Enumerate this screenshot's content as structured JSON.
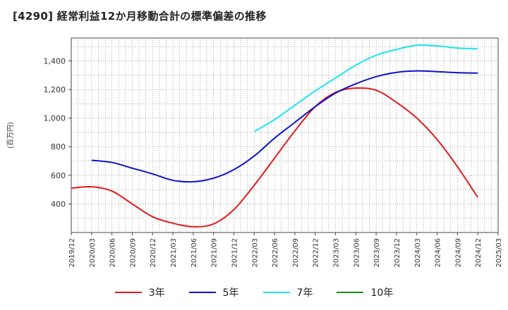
{
  "title": "[4290]  経常利益12か月移動合計の標準偏差の推移",
  "chart_data": {
    "type": "line",
    "title": "[4290]  経常利益12か月移動合計の標準偏差の推移",
    "xlabel": "",
    "ylabel": "(百万円)",
    "ylim": [
      200,
      1560
    ],
    "yticks": [
      400,
      600,
      800,
      1000,
      1200,
      1400
    ],
    "ytick_labels": [
      "400",
      "600",
      "800",
      "1,000",
      "1,200",
      "1,400"
    ],
    "xticks": [
      "2019/12",
      "2020/03",
      "2020/06",
      "2020/09",
      "2020/12",
      "2021/03",
      "2021/06",
      "2021/09",
      "2021/12",
      "2022/03",
      "2022/06",
      "2022/09",
      "2022/12",
      "2023/03",
      "2023/06",
      "2023/09",
      "2023/12",
      "2024/03",
      "2024/06",
      "2024/09",
      "2024/12",
      "2025/03"
    ],
    "grid": true,
    "legend_position": "bottom",
    "series": [
      {
        "name": "3年",
        "color": "#e31a1c",
        "x": [
          "2019/12",
          "2020/03",
          "2020/06",
          "2020/09",
          "2020/12",
          "2021/03",
          "2021/06",
          "2021/09",
          "2021/12",
          "2022/03",
          "2022/06",
          "2022/09",
          "2022/12",
          "2023/03",
          "2023/06",
          "2023/09",
          "2023/12",
          "2024/03",
          "2024/06",
          "2024/09",
          "2024/12"
        ],
        "values": [
          510,
          520,
          490,
          400,
          310,
          265,
          240,
          260,
          360,
          530,
          720,
          910,
          1080,
          1180,
          1210,
          1195,
          1110,
          1000,
          850,
          660,
          445
        ]
      },
      {
        "name": "5年",
        "color": "#0a14c8",
        "x": [
          "2020/03",
          "2020/06",
          "2020/09",
          "2020/12",
          "2021/03",
          "2021/06",
          "2021/09",
          "2021/12",
          "2022/03",
          "2022/06",
          "2022/09",
          "2022/12",
          "2023/03",
          "2023/06",
          "2023/09",
          "2023/12",
          "2024/03",
          "2024/06",
          "2024/09",
          "2024/12"
        ],
        "values": [
          705,
          690,
          650,
          610,
          565,
          555,
          580,
          640,
          735,
          860,
          970,
          1080,
          1175,
          1240,
          1290,
          1320,
          1330,
          1325,
          1318,
          1315
        ]
      },
      {
        "name": "7年",
        "color": "#19e6f0",
        "x": [
          "2022/03",
          "2022/06",
          "2022/09",
          "2022/12",
          "2023/03",
          "2023/06",
          "2023/09",
          "2023/12",
          "2024/03",
          "2024/06",
          "2024/09",
          "2024/12"
        ],
        "values": [
          905,
          990,
          1090,
          1190,
          1280,
          1370,
          1440,
          1480,
          1510,
          1505,
          1490,
          1485
        ]
      },
      {
        "name": "10年",
        "color": "#1a8c1a",
        "x": [],
        "values": []
      }
    ]
  }
}
